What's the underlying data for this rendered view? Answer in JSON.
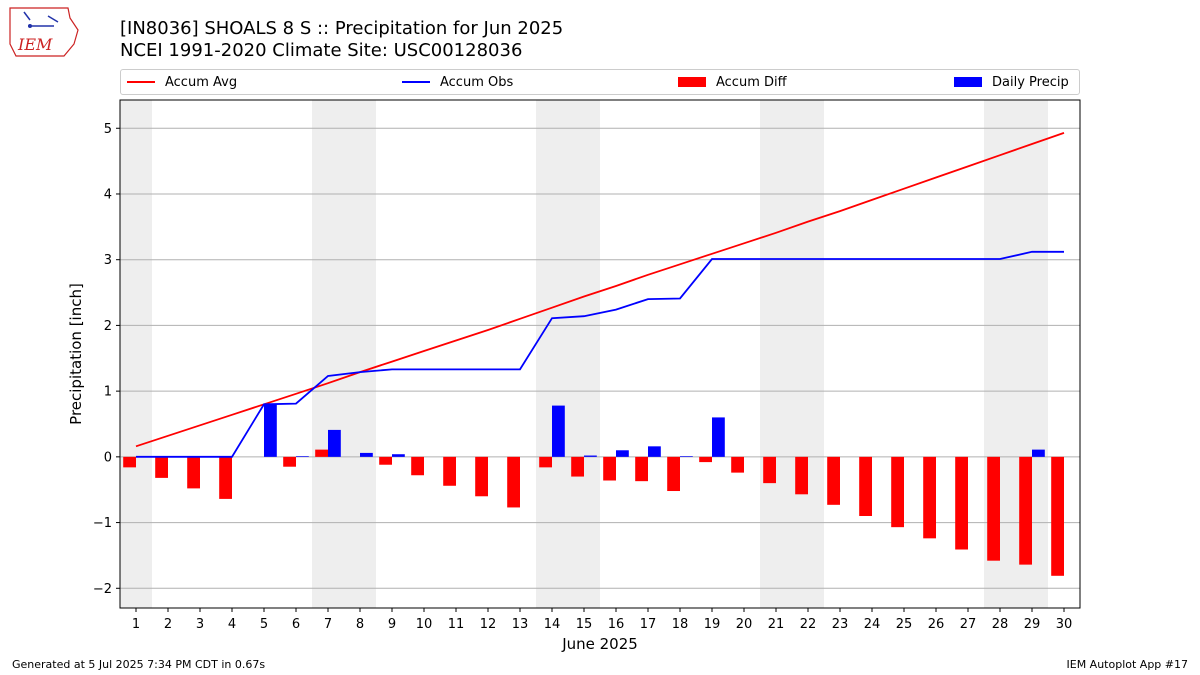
{
  "header": {
    "title": "[IN8036] SHOALS 8 S :: Precipitation for Jun 2025",
    "subtitle": "NCEI 1991-2020 Climate Site: USC00128036"
  },
  "logo": {
    "text": "IEM"
  },
  "legend": {
    "items": [
      {
        "label": "Accum Avg",
        "color": "#ff0000",
        "kind": "line"
      },
      {
        "label": "Accum Obs",
        "color": "#0000ff",
        "kind": "line"
      },
      {
        "label": "Accum Diff",
        "color": "#ff0000",
        "kind": "bar"
      },
      {
        "label": "Daily Precip",
        "color": "#0000ff",
        "kind": "bar"
      }
    ]
  },
  "footer": {
    "left": "Generated at 5 Jul 2025 7:34 PM CDT in 0.67s",
    "right": "IEM Autoplot App #17"
  },
  "chart_data": {
    "type": "bar",
    "xlabel": "June 2025",
    "ylabel": "Precipitation [inch]",
    "xlim": [
      0.5,
      30.5
    ],
    "ylim": [
      -2.3,
      5.43
    ],
    "x_ticks": [
      1,
      2,
      3,
      4,
      5,
      6,
      7,
      8,
      9,
      10,
      11,
      12,
      13,
      14,
      15,
      16,
      17,
      18,
      19,
      20,
      21,
      22,
      23,
      24,
      25,
      26,
      27,
      28,
      29,
      30
    ],
    "y_ticks": [
      -2,
      -1,
      0,
      1,
      2,
      3,
      4,
      5
    ],
    "grid": "horizontal",
    "weekend_shading": [
      [
        0.5,
        1.5
      ],
      [
        6.5,
        8.5
      ],
      [
        13.5,
        15.5
      ],
      [
        20.5,
        22.5
      ],
      [
        27.5,
        29.5
      ]
    ],
    "days": [
      1,
      2,
      3,
      4,
      5,
      6,
      7,
      8,
      9,
      10,
      11,
      12,
      13,
      14,
      15,
      16,
      17,
      18,
      19,
      20,
      21,
      22,
      23,
      24,
      25,
      26,
      27,
      28,
      29,
      30
    ],
    "series": [
      {
        "name": "Accum Avg",
        "kind": "line",
        "color": "#ff0000",
        "values": [
          0.16,
          0.32,
          0.48,
          0.64,
          0.8,
          0.96,
          1.12,
          1.29,
          1.45,
          1.61,
          1.77,
          1.93,
          2.1,
          2.27,
          2.44,
          2.6,
          2.77,
          2.93,
          3.09,
          3.25,
          3.41,
          3.58,
          3.74,
          3.91,
          4.08,
          4.25,
          4.42,
          4.59,
          4.76,
          4.93
        ]
      },
      {
        "name": "Accum Obs",
        "kind": "line",
        "color": "#0000ff",
        "values": [
          0.0,
          0.0,
          0.0,
          0.0,
          0.8,
          0.81,
          1.23,
          1.29,
          1.33,
          1.33,
          1.33,
          1.33,
          1.33,
          2.11,
          2.14,
          2.24,
          2.4,
          2.41,
          3.01,
          3.01,
          3.01,
          3.01,
          3.01,
          3.01,
          3.01,
          3.01,
          3.01,
          3.01,
          3.12,
          3.12
        ]
      },
      {
        "name": "Accum Diff",
        "kind": "bar",
        "color": "#ff0000",
        "values": [
          -0.16,
          -0.32,
          -0.48,
          -0.64,
          0.0,
          -0.15,
          0.11,
          0.0,
          -0.12,
          -0.28,
          -0.44,
          -0.6,
          -0.77,
          -0.16,
          -0.3,
          -0.36,
          -0.37,
          -0.52,
          -0.08,
          -0.24,
          -0.4,
          -0.57,
          -0.73,
          -0.9,
          -1.07,
          -1.24,
          -1.41,
          -1.58,
          -1.64,
          -1.81
        ]
      },
      {
        "name": "Daily Precip",
        "kind": "bar",
        "color": "#0000ff",
        "values": [
          0,
          0,
          0,
          0,
          0.8,
          0.01,
          0.41,
          0.06,
          0.04,
          0,
          0,
          0,
          0,
          0.78,
          0.02,
          0.1,
          0.16,
          0.01,
          0.6,
          0,
          0,
          0,
          0,
          0,
          0,
          0,
          0,
          0,
          0.11,
          0
        ]
      }
    ]
  }
}
